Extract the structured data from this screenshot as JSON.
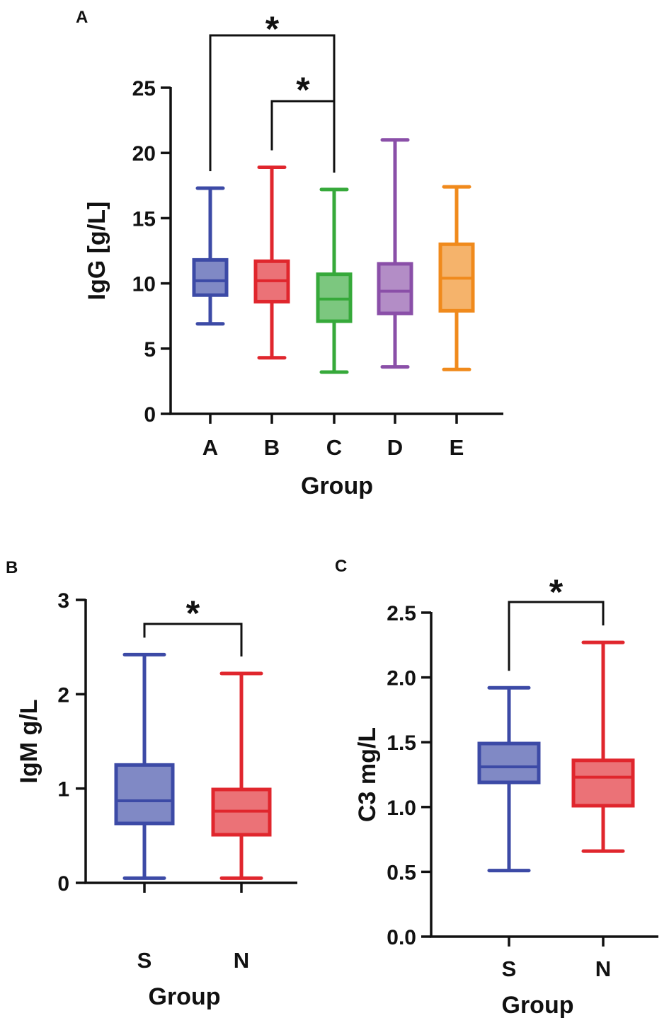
{
  "chart_data": [
    {
      "panel": "A",
      "type": "boxplot",
      "ylabel": "IgG [g/L]",
      "xlabel": "Group",
      "ylim": [
        0,
        25
      ],
      "yticks": [
        0,
        5,
        10,
        15,
        20,
        25
      ],
      "ytick_labels": [
        "0",
        "5",
        "10",
        "15",
        "20",
        "25"
      ],
      "categories": [
        "A",
        "B",
        "C",
        "D",
        "E"
      ],
      "colors": [
        "#3c4aa6",
        "#e0262d",
        "#36a93a",
        "#8a4fa8",
        "#f08a1c"
      ],
      "boxes": [
        {
          "min": 6.9,
          "q1": 9.1,
          "median": 10.2,
          "q3": 11.8,
          "max": 17.3
        },
        {
          "min": 4.3,
          "q1": 8.6,
          "median": 10.2,
          "q3": 11.7,
          "max": 18.9
        },
        {
          "min": 3.2,
          "q1": 7.1,
          "median": 8.8,
          "q3": 10.7,
          "max": 17.2
        },
        {
          "min": 3.6,
          "q1": 7.7,
          "median": 9.4,
          "q3": 11.5,
          "max": 21.0
        },
        {
          "min": 3.4,
          "q1": 7.9,
          "median": 10.4,
          "q3": 13.0,
          "max": 17.4
        }
      ],
      "significance": [
        {
          "from": "A",
          "to": "C",
          "label": "*"
        },
        {
          "from": "B",
          "to": "C",
          "label": "*"
        }
      ]
    },
    {
      "panel": "B",
      "type": "boxplot",
      "ylabel": "IgM g/L",
      "xlabel": "Group",
      "ylim": [
        0,
        3
      ],
      "yticks": [
        0,
        1,
        2,
        3
      ],
      "ytick_labels": [
        "0",
        "1",
        "2",
        "3"
      ],
      "categories": [
        "S",
        "N"
      ],
      "colors": [
        "#3c4aa6",
        "#e0262d"
      ],
      "boxes": [
        {
          "min": 0.05,
          "q1": 0.63,
          "median": 0.87,
          "q3": 1.25,
          "max": 2.42
        },
        {
          "min": 0.05,
          "q1": 0.51,
          "median": 0.76,
          "q3": 0.99,
          "max": 2.22
        }
      ],
      "significance": [
        {
          "from": "S",
          "to": "N",
          "label": "*"
        }
      ]
    },
    {
      "panel": "C",
      "type": "boxplot",
      "ylabel": "C3 mg/L",
      "xlabel": "Group",
      "ylim": [
        0,
        2.5
      ],
      "yticks": [
        0,
        0.5,
        1.0,
        1.5,
        2.0,
        2.5
      ],
      "ytick_labels": [
        "0.0",
        "0.5",
        "1.0",
        "1.5",
        "2.0",
        "2.5"
      ],
      "categories": [
        "S",
        "N"
      ],
      "colors": [
        "#3c4aa6",
        "#e0262d"
      ],
      "boxes": [
        {
          "min": 0.51,
          "q1": 1.19,
          "median": 1.31,
          "q3": 1.49,
          "max": 1.92
        },
        {
          "min": 0.66,
          "q1": 1.01,
          "median": 1.23,
          "q3": 1.36,
          "max": 2.27
        }
      ],
      "significance": [
        {
          "from": "S",
          "to": "N",
          "label": "*"
        }
      ]
    }
  ]
}
